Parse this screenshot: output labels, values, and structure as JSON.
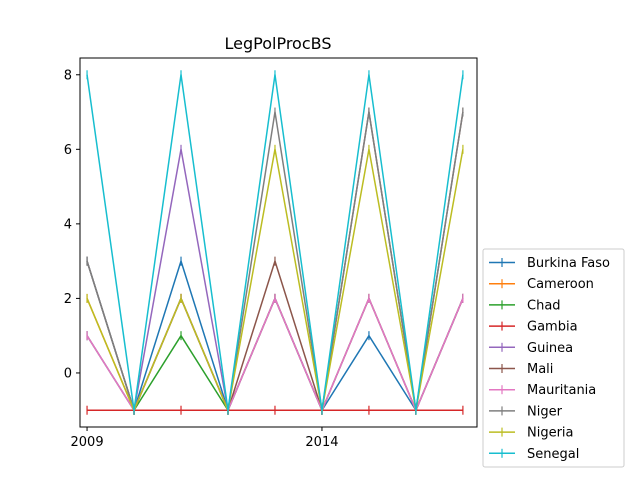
{
  "chart_data": {
    "type": "line",
    "title": "LegPolProcBS",
    "xlabel": "",
    "ylabel": "",
    "x": [
      2009,
      2010,
      2011,
      2012,
      2013,
      2014,
      2015,
      2016,
      2017
    ],
    "x_ticks": [
      2009,
      2014
    ],
    "y_ticks": [
      0,
      2,
      4,
      6,
      8
    ],
    "xlim": [
      2008.85,
      2017.3
    ],
    "ylim": [
      -1.45,
      8.45
    ],
    "grid": false,
    "legend_position": "right-bottom-outside",
    "marker": "vertical-tick",
    "series": [
      {
        "name": "Burkina Faso",
        "color": "#1f77b4",
        "values": [
          3,
          -1,
          3,
          -1,
          2,
          -1,
          1,
          -1,
          2
        ]
      },
      {
        "name": "Cameroon",
        "color": "#ff7f0e",
        "values": [
          2,
          -1,
          2,
          -1,
          2,
          -1,
          2,
          -1,
          2
        ]
      },
      {
        "name": "Chad",
        "color": "#2ca02c",
        "values": [
          1,
          -1,
          1,
          -1,
          2,
          -1,
          2,
          -1,
          2
        ]
      },
      {
        "name": "Gambia",
        "color": "#d62728",
        "values": [
          -1,
          -1,
          -1,
          -1,
          -1,
          -1,
          -1,
          -1,
          -1
        ]
      },
      {
        "name": "Guinea",
        "color": "#9467bd",
        "values": [
          1,
          -1,
          6,
          -1,
          2,
          -1,
          2,
          -1,
          2
        ]
      },
      {
        "name": "Mali",
        "color": "#8c564b",
        "values": [
          3,
          -1,
          2,
          -1,
          3,
          -1,
          7,
          -1,
          7
        ]
      },
      {
        "name": "Mauritania",
        "color": "#e377c2",
        "values": [
          1,
          -1,
          2,
          -1,
          2,
          -1,
          2,
          -1,
          2
        ]
      },
      {
        "name": "Niger",
        "color": "#7f7f7f",
        "values": [
          3,
          -1,
          2,
          -1,
          7,
          -1,
          7,
          -1,
          7
        ]
      },
      {
        "name": "Nigeria",
        "color": "#bcbd22",
        "values": [
          2,
          -1,
          2,
          -1,
          6,
          -1,
          6,
          -1,
          6
        ]
      },
      {
        "name": "Senegal",
        "color": "#17becf",
        "values": [
          8,
          -1,
          8,
          -1,
          8,
          -1,
          8,
          -1,
          8
        ]
      }
    ]
  }
}
